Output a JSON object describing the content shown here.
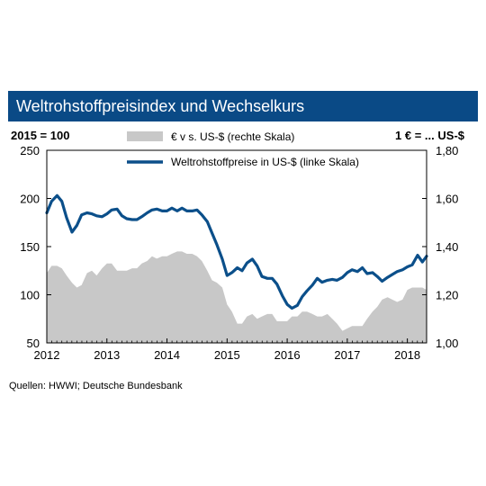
{
  "colors": {
    "title_bg": "#0a4a86",
    "exchange_fill": "#c8c8c8",
    "commodity_line": "#0b4f8a",
    "axis": "#000000"
  },
  "chart_data": {
    "type": "area",
    "title": "Weltrohstoffpreisindex und Wechselkurs",
    "left_unit_label": "2015 = 100",
    "right_unit_label": "1 € = ... US-$",
    "x_ticks": [
      "2012",
      "2013",
      "2014",
      "2015",
      "2016",
      "2017",
      "2018"
    ],
    "xlim": [
      2012.0,
      2018.32
    ],
    "left_axis": {
      "ylim": [
        50,
        250
      ],
      "ticks": [
        "50",
        "100",
        "150",
        "200",
        "250"
      ],
      "tick_values": [
        50,
        100,
        150,
        200,
        250
      ]
    },
    "right_axis": {
      "ylim": [
        1.0,
        1.8
      ],
      "ticks": [
        "1,00",
        "1,20",
        "1,40",
        "1,60",
        "1,80"
      ],
      "tick_values": [
        1.0,
        1.2,
        1.4,
        1.6,
        1.8
      ]
    },
    "grid": false,
    "legend_position": "top-center",
    "series": [
      {
        "name": "€ v s. US-$ (rechte Skala)",
        "type": "area",
        "axis": "right",
        "x": [
          2012.0,
          2012.08,
          2012.17,
          2012.25,
          2012.33,
          2012.42,
          2012.5,
          2012.58,
          2012.67,
          2012.75,
          2012.83,
          2012.92,
          2013.0,
          2013.08,
          2013.17,
          2013.25,
          2013.33,
          2013.42,
          2013.5,
          2013.58,
          2013.67,
          2013.75,
          2013.83,
          2013.92,
          2014.0,
          2014.08,
          2014.17,
          2014.25,
          2014.33,
          2014.42,
          2014.5,
          2014.58,
          2014.67,
          2014.75,
          2014.83,
          2014.92,
          2015.0,
          2015.08,
          2015.17,
          2015.25,
          2015.33,
          2015.42,
          2015.5,
          2015.58,
          2015.67,
          2015.75,
          2015.83,
          2015.92,
          2016.0,
          2016.08,
          2016.17,
          2016.25,
          2016.33,
          2016.42,
          2016.5,
          2016.58,
          2016.67,
          2016.75,
          2016.83,
          2016.92,
          2017.0,
          2017.08,
          2017.17,
          2017.25,
          2017.33,
          2017.42,
          2017.5,
          2017.58,
          2017.67,
          2017.75,
          2017.83,
          2017.92,
          2018.0,
          2018.08,
          2018.17,
          2018.25,
          2018.32
        ],
        "values": [
          1.29,
          1.32,
          1.32,
          1.31,
          1.28,
          1.25,
          1.23,
          1.24,
          1.29,
          1.3,
          1.28,
          1.31,
          1.33,
          1.33,
          1.3,
          1.3,
          1.3,
          1.31,
          1.31,
          1.33,
          1.34,
          1.36,
          1.35,
          1.36,
          1.36,
          1.37,
          1.38,
          1.38,
          1.37,
          1.37,
          1.36,
          1.34,
          1.3,
          1.26,
          1.25,
          1.23,
          1.16,
          1.13,
          1.08,
          1.08,
          1.11,
          1.12,
          1.1,
          1.11,
          1.12,
          1.12,
          1.09,
          1.09,
          1.09,
          1.11,
          1.11,
          1.13,
          1.13,
          1.12,
          1.11,
          1.11,
          1.12,
          1.1,
          1.08,
          1.05,
          1.06,
          1.07,
          1.07,
          1.07,
          1.1,
          1.13,
          1.15,
          1.18,
          1.19,
          1.18,
          1.17,
          1.18,
          1.22,
          1.23,
          1.23,
          1.23,
          1.22
        ]
      },
      {
        "name": "Weltrohstoffpreise in US-$ (linke Skala)",
        "type": "line",
        "axis": "left",
        "x": [
          2012.0,
          2012.08,
          2012.17,
          2012.25,
          2012.33,
          2012.42,
          2012.5,
          2012.58,
          2012.67,
          2012.75,
          2012.83,
          2012.92,
          2013.0,
          2013.08,
          2013.17,
          2013.25,
          2013.33,
          2013.42,
          2013.5,
          2013.58,
          2013.67,
          2013.75,
          2013.83,
          2013.92,
          2014.0,
          2014.08,
          2014.17,
          2014.25,
          2014.33,
          2014.42,
          2014.5,
          2014.58,
          2014.67,
          2014.75,
          2014.83,
          2014.92,
          2015.0,
          2015.08,
          2015.17,
          2015.25,
          2015.33,
          2015.42,
          2015.5,
          2015.58,
          2015.67,
          2015.75,
          2015.83,
          2015.92,
          2016.0,
          2016.08,
          2016.17,
          2016.25,
          2016.33,
          2016.42,
          2016.5,
          2016.58,
          2016.67,
          2016.75,
          2016.83,
          2016.92,
          2017.0,
          2017.08,
          2017.17,
          2017.25,
          2017.33,
          2017.42,
          2017.5,
          2017.58,
          2017.67,
          2017.75,
          2017.83,
          2017.92,
          2018.0,
          2018.08,
          2018.17,
          2018.25,
          2018.32
        ],
        "values": [
          185,
          197,
          203,
          197,
          180,
          165,
          172,
          183,
          185,
          184,
          182,
          181,
          184,
          188,
          189,
          182,
          179,
          178,
          178,
          181,
          185,
          188,
          189,
          187,
          187,
          190,
          187,
          190,
          187,
          187,
          188,
          183,
          176,
          164,
          152,
          137,
          120,
          123,
          128,
          125,
          133,
          137,
          130,
          119,
          117,
          117,
          111,
          99,
          90,
          86,
          89,
          98,
          104,
          110,
          117,
          113,
          115,
          116,
          115,
          118,
          123,
          126,
          124,
          128,
          122,
          123,
          119,
          114,
          118,
          121,
          124,
          126,
          129,
          131,
          141,
          134,
          140
        ]
      }
    ]
  },
  "source": "Quellen: HWWI; Deutsche Bundesbank"
}
